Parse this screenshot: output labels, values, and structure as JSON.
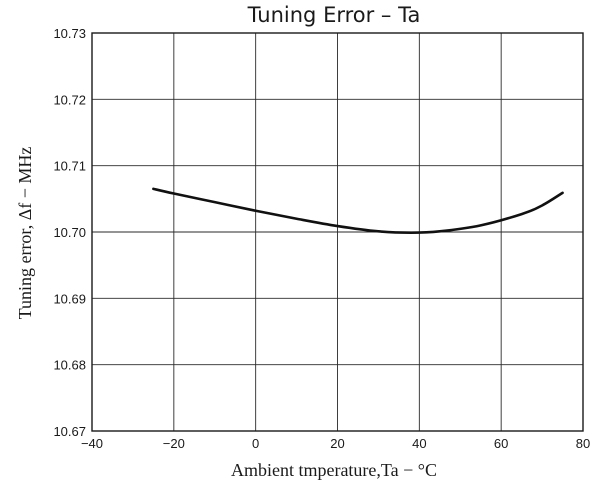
{
  "chart_data": {
    "type": "line",
    "title": "Tuning Error  –  Ta",
    "xlabel": "Ambient tmperature,Ta − °C",
    "ylabel": "Tuning error, Δf − MHz",
    "xlim": [
      -40,
      80
    ],
    "ylim": [
      10.67,
      10.73
    ],
    "x_ticks": [
      -40,
      -20,
      0,
      20,
      40,
      60,
      80
    ],
    "x_tick_labels": [
      "−40",
      "−20",
      "0",
      "20",
      "40",
      "60",
      "80"
    ],
    "y_ticks": [
      10.67,
      10.68,
      10.69,
      10.7,
      10.71,
      10.72,
      10.73
    ],
    "y_tick_labels": [
      "10.67",
      "10.68",
      "10.69",
      "10.70",
      "10.71",
      "10.72",
      "10.73"
    ],
    "grid": true,
    "series": [
      {
        "x": [
          -25,
          -20,
          -10,
          0,
          10,
          20,
          30,
          38,
          45,
          55,
          65,
          70,
          75
        ],
        "y": [
          10.7065,
          10.7058,
          10.7045,
          10.7032,
          10.702,
          10.7009,
          10.7001,
          10.6999,
          10.7001,
          10.701,
          10.7027,
          10.704,
          10.7059
        ]
      }
    ]
  }
}
